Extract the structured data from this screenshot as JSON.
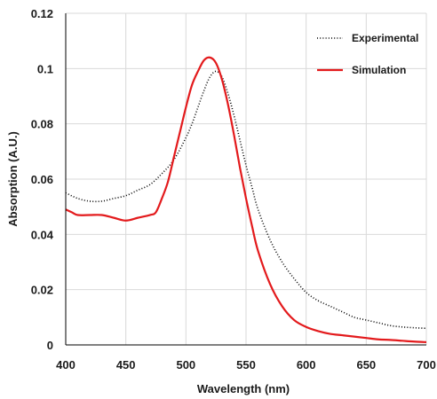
{
  "chart_data": {
    "type": "line",
    "title": "",
    "xlabel": "Wavelength (nm)",
    "ylabel": "Absorption (A.U.)",
    "xlim": [
      400,
      700
    ],
    "ylim": [
      0,
      0.12
    ],
    "x_ticks": [
      400,
      450,
      500,
      550,
      600,
      650,
      700
    ],
    "y_ticks": [
      0,
      0.02,
      0.04,
      0.06,
      0.08,
      0.1,
      0.12
    ],
    "y_tick_labels": [
      "0",
      "0.02",
      "0.04",
      "0.06",
      "0.08",
      "0.1",
      "0.12"
    ],
    "grid": true,
    "legend_position": "top-right",
    "colors": {
      "experimental": "#000000",
      "simulation": "#e31a1c",
      "grid": "#d9d9d9",
      "axis": "#000000"
    },
    "series": [
      {
        "name": "Experimental",
        "style": "dotted",
        "x": [
          400,
          410,
          420,
          430,
          440,
          450,
          460,
          470,
          480,
          490,
          500,
          505,
          510,
          515,
          520,
          525,
          530,
          535,
          540,
          545,
          550,
          555,
          560,
          570,
          580,
          590,
          600,
          610,
          620,
          630,
          640,
          650,
          660,
          670,
          680,
          690,
          700
        ],
        "y": [
          0.055,
          0.053,
          0.052,
          0.052,
          0.053,
          0.054,
          0.056,
          0.058,
          0.062,
          0.067,
          0.075,
          0.08,
          0.086,
          0.092,
          0.097,
          0.099,
          0.097,
          0.091,
          0.083,
          0.074,
          0.065,
          0.057,
          0.049,
          0.038,
          0.03,
          0.024,
          0.019,
          0.016,
          0.014,
          0.012,
          0.01,
          0.009,
          0.008,
          0.007,
          0.0065,
          0.0062,
          0.006
        ]
      },
      {
        "name": "Simulation",
        "style": "solid",
        "x": [
          400,
          405,
          410,
          420,
          430,
          440,
          450,
          460,
          470,
          475,
          480,
          485,
          490,
          495,
          500,
          505,
          510,
          515,
          520,
          525,
          530,
          535,
          540,
          545,
          550,
          555,
          560,
          570,
          580,
          590,
          600,
          610,
          620,
          630,
          640,
          650,
          660,
          670,
          680,
          690,
          700
        ],
        "y": [
          0.049,
          0.048,
          0.047,
          0.047,
          0.047,
          0.046,
          0.045,
          0.046,
          0.047,
          0.048,
          0.053,
          0.059,
          0.068,
          0.077,
          0.086,
          0.094,
          0.099,
          0.103,
          0.104,
          0.102,
          0.096,
          0.087,
          0.076,
          0.064,
          0.053,
          0.043,
          0.034,
          0.022,
          0.014,
          0.009,
          0.0065,
          0.005,
          0.004,
          0.0035,
          0.003,
          0.0025,
          0.002,
          0.0018,
          0.0015,
          0.0012,
          0.001
        ]
      }
    ]
  }
}
